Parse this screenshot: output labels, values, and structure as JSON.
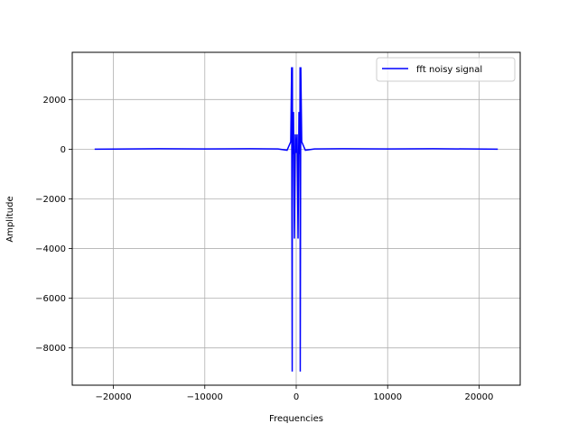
{
  "chart_data": {
    "type": "line",
    "title": "",
    "xlabel": "Frequencies",
    "ylabel": "Amplitude",
    "xlim": [
      -24500,
      24500
    ],
    "ylim": [
      -9500,
      3900
    ],
    "x_ticks": [
      -20000,
      -10000,
      0,
      10000,
      20000
    ],
    "x_tick_labels": [
      "−20000",
      "−10000",
      "0",
      "10000",
      "20000"
    ],
    "y_ticks": [
      -8000,
      -6000,
      -4000,
      -2000,
      0,
      2000
    ],
    "y_tick_labels": [
      "−8000",
      "−6000",
      "−4000",
      "−2000",
      "0",
      "2000"
    ],
    "grid": true,
    "legend": {
      "placement": "top-right"
    },
    "series": [
      {
        "name": "fft noisy signal",
        "color": "#0000ff",
        "x": [
          -22050,
          -15000,
          -10000,
          -5000,
          -2000,
          -1000,
          -600,
          -500,
          -440,
          -420,
          -400,
          -300,
          -200,
          -100,
          0,
          100,
          200,
          300,
          400,
          420,
          440,
          500,
          600,
          1000,
          2000,
          5000,
          10000,
          15000,
          22050
        ],
        "y": [
          0,
          20,
          10,
          20,
          10,
          -40,
          300,
          3300,
          -8950,
          3300,
          -200,
          1500,
          -3600,
          600,
          -150,
          600,
          -3600,
          1500,
          -200,
          3300,
          -8950,
          3300,
          300,
          -40,
          10,
          20,
          10,
          20,
          0
        ]
      }
    ]
  }
}
